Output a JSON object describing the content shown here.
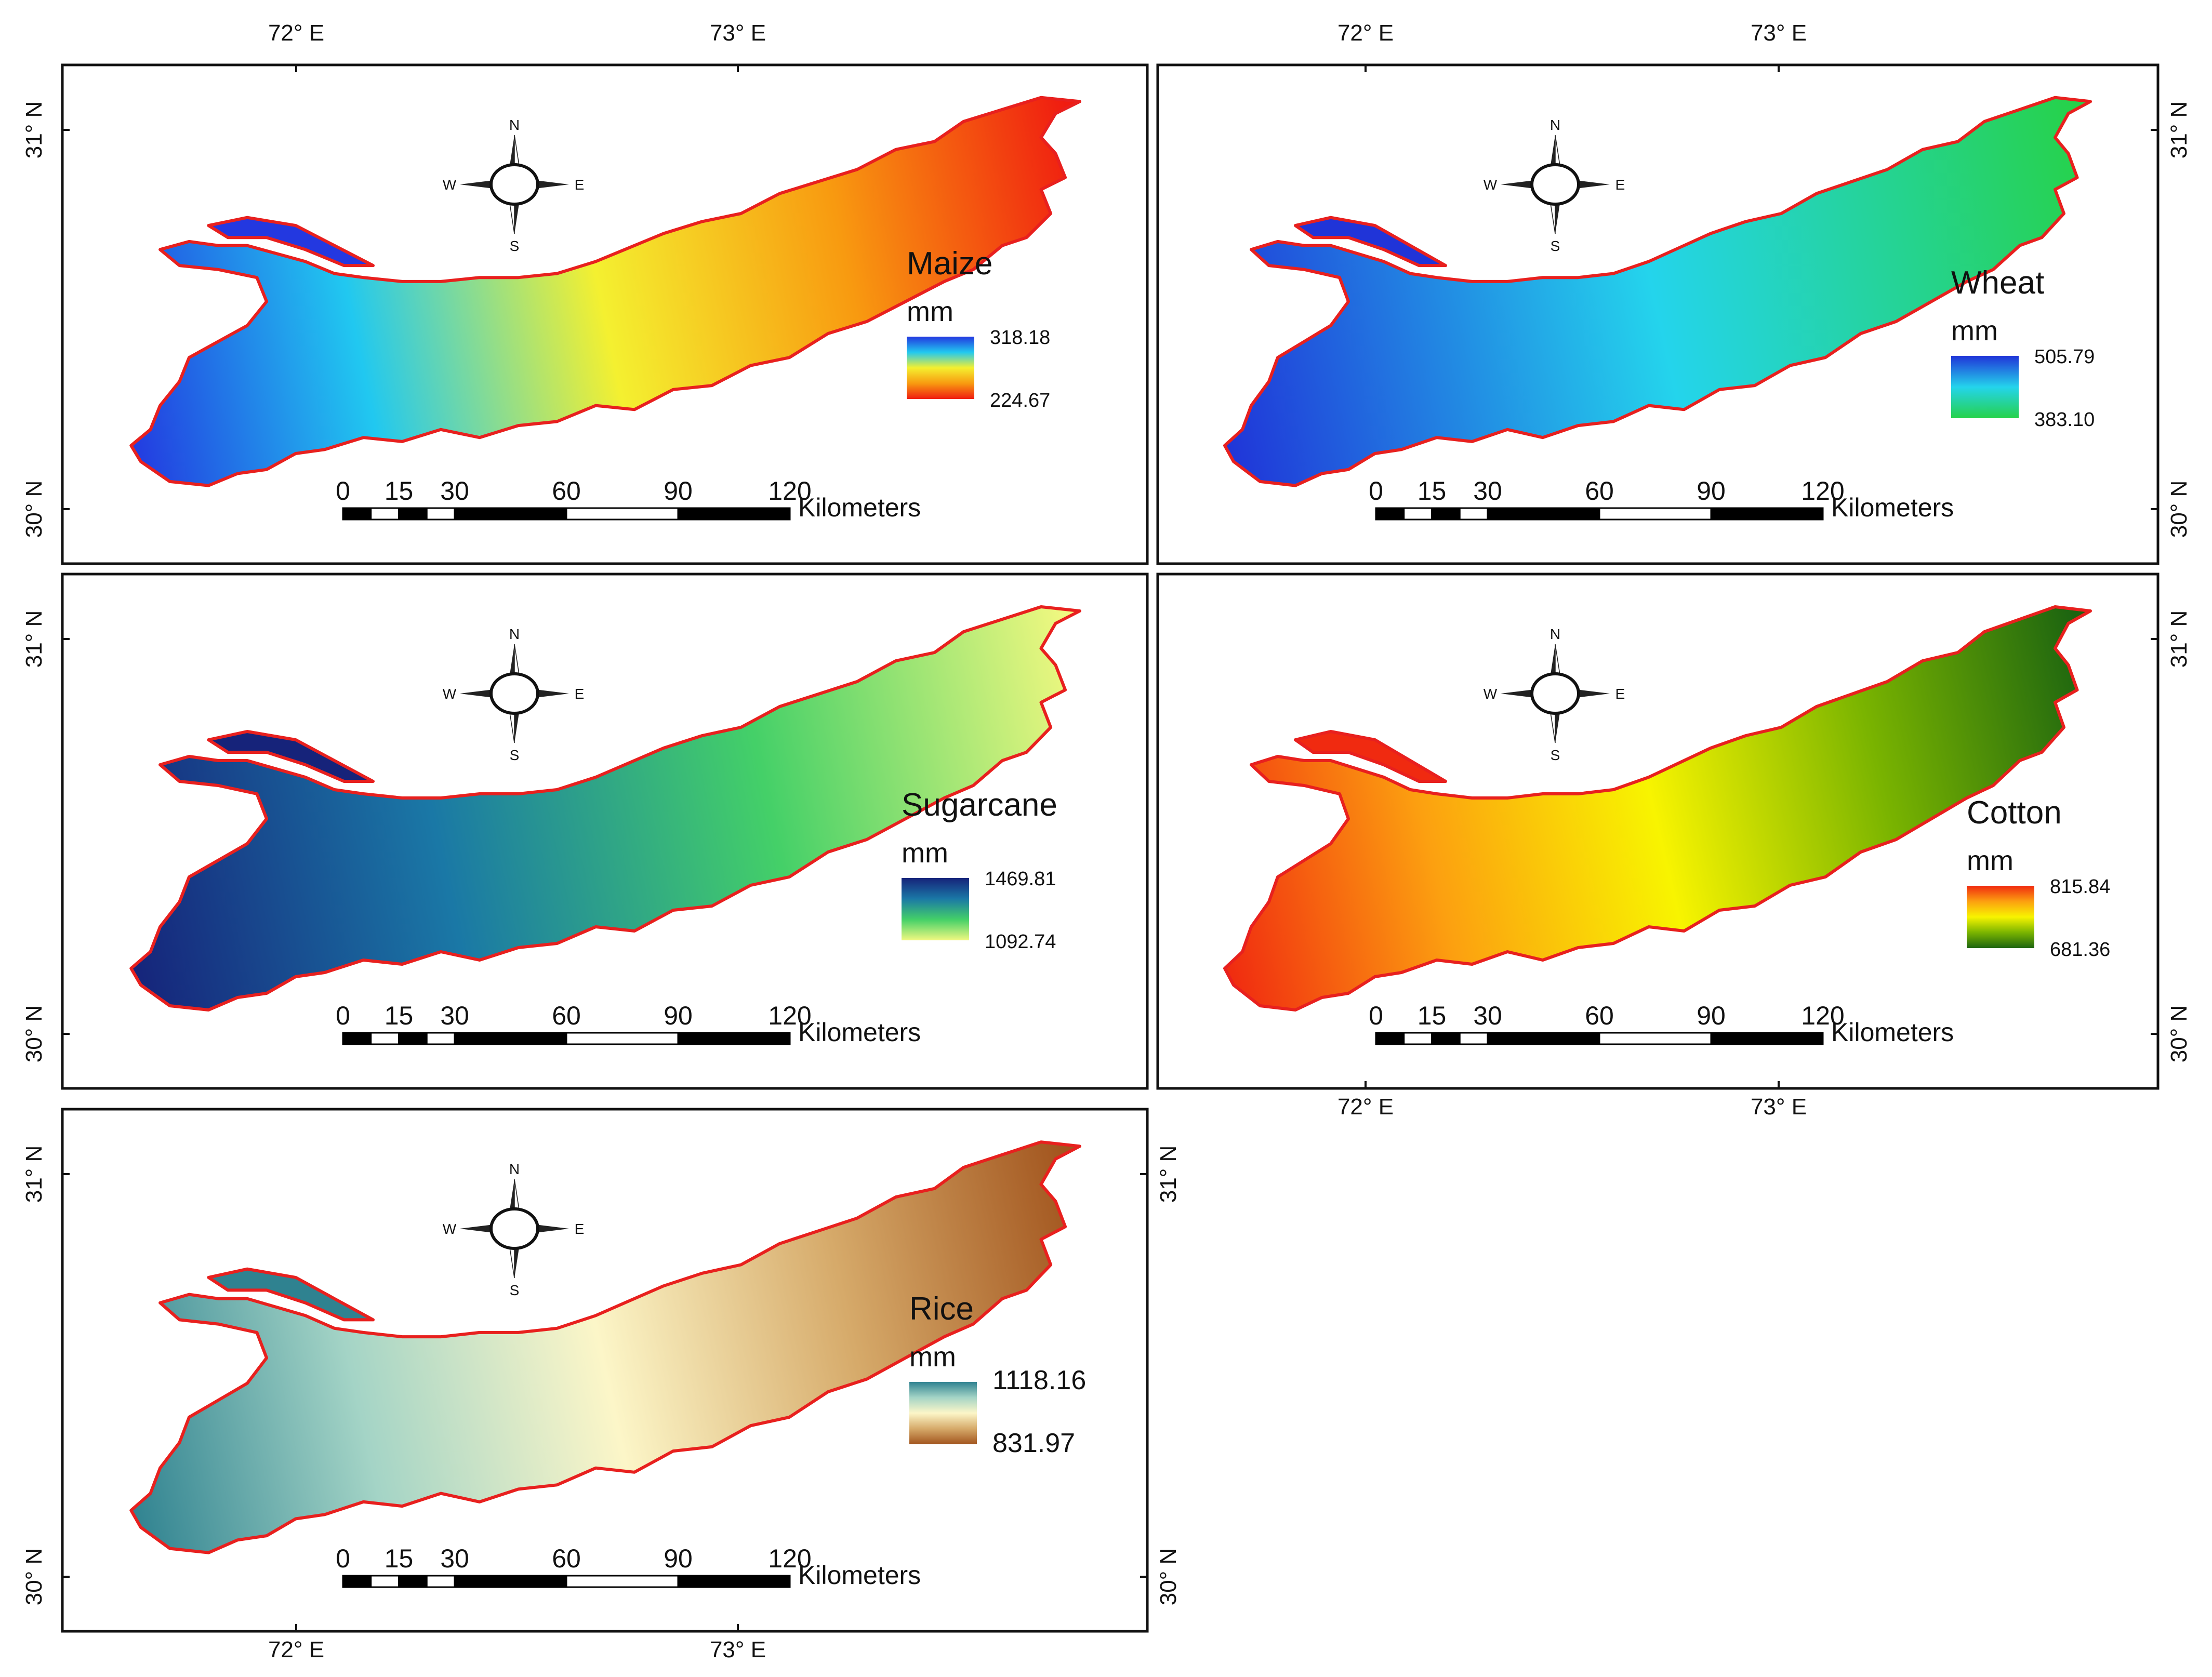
{
  "figure": {
    "longitude_labels": [
      "72° E",
      "73° E"
    ],
    "latitude_labels": [
      "31° N",
      "30° N"
    ],
    "compass": {
      "north": "N",
      "south": "S",
      "east": "E",
      "west": "W"
    },
    "scale_bar": {
      "ticks": [
        "0",
        "15",
        "30",
        "60",
        "90",
        "120"
      ],
      "unit": "Kilometers"
    },
    "region_outline_color": "#e8201e"
  },
  "panels": [
    {
      "id": "maize",
      "title": "Maize",
      "unit": "mm",
      "legend_max": "318.18",
      "legend_min": "224.67",
      "ramp_colors": [
        "#2338e0",
        "#21c8f0",
        "#f4f030",
        "#f89a10",
        "#f01c10"
      ]
    },
    {
      "id": "wheat",
      "title": "Wheat",
      "unit": "mm",
      "legend_max": "505.79",
      "legend_min": "383.10",
      "ramp_colors": [
        "#2034d8",
        "#24d4ec",
        "#26d24a"
      ]
    },
    {
      "id": "sugarcane",
      "title": "Sugarcane",
      "unit": "mm",
      "legend_max": "1469.81",
      "legend_min": "1092.74",
      "ramp_colors": [
        "#16237a",
        "#1a78a6",
        "#44d068",
        "#f0f880"
      ]
    },
    {
      "id": "cotton",
      "title": "Cotton",
      "unit": "mm",
      "legend_max": "815.84",
      "legend_min": "681.36",
      "ramp_colors": [
        "#f02a10",
        "#fca010",
        "#f8f400",
        "#7ab400",
        "#1c6410"
      ]
    },
    {
      "id": "rice",
      "title": "Rice",
      "unit": "mm",
      "legend_max": "1118.16",
      "legend_min": "831.97",
      "ramp_colors": [
        "#2f8290",
        "#a4d4c6",
        "#fcf6c8",
        "#d6aa6a",
        "#a2551e"
      ]
    }
  ]
}
